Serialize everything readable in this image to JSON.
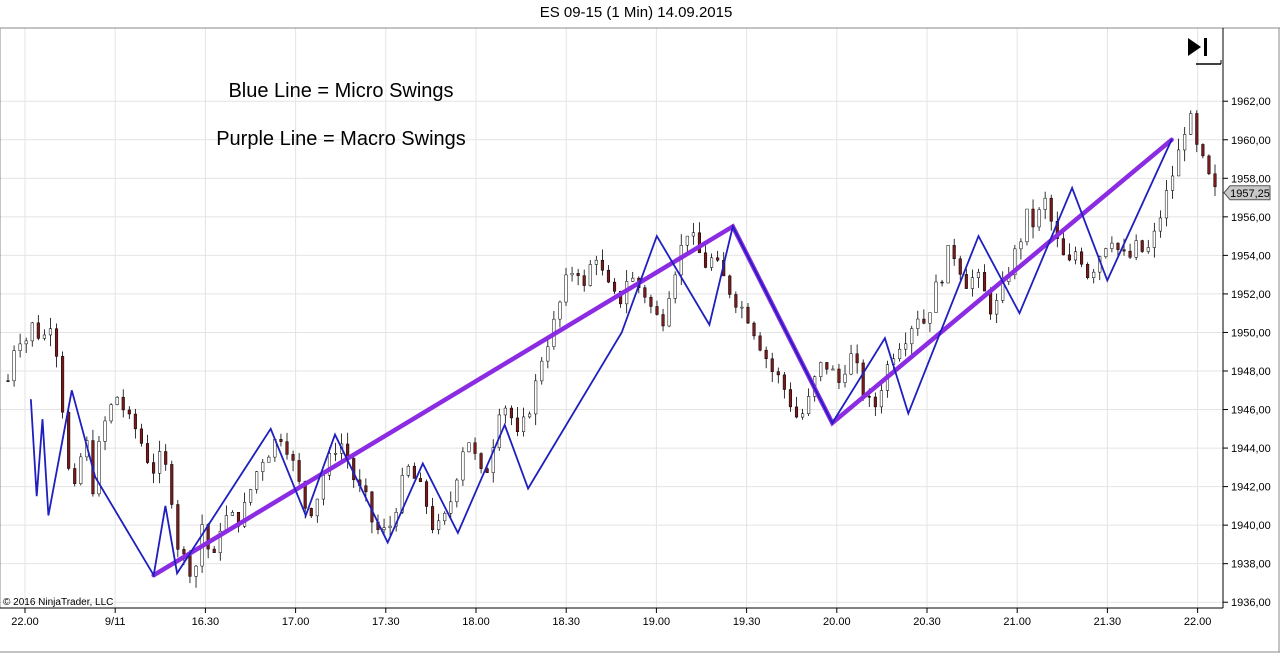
{
  "chart_data": {
    "type": "candlestick",
    "title": "ES 09-15 (1 Min)  14.09.2015",
    "xlabel": "",
    "ylabel": "",
    "x_tick_labels": [
      "22.00",
      "9/11",
      "16.30",
      "17.00",
      "17.30",
      "18.00",
      "18.30",
      "19.00",
      "19.30",
      "20.00",
      "20.30",
      "21.00",
      "21.30",
      "22.00"
    ],
    "y_ticks": [
      "1936,00",
      "1938,00",
      "1940,00",
      "1942,00",
      "1944,00",
      "1946,00",
      "1948,00",
      "1950,00",
      "1952,00",
      "1954,00",
      "1956,00",
      "1958,00",
      "1960,00",
      "1962,00"
    ],
    "ylim": [
      1935.7,
      1965.8
    ],
    "grid": true,
    "last_price_label": "1957,25",
    "last_price": 1957.25,
    "candle_colors": {
      "up": "#ffffff",
      "down": "#7a1a1a",
      "wick": "#000000"
    },
    "price_path": [
      [
        0,
        1947.5
      ],
      [
        1,
        1950
      ],
      [
        2,
        1949.5
      ],
      [
        3,
        1950.5
      ],
      [
        4,
        1949.5
      ],
      [
        5,
        1950.6
      ],
      [
        6,
        1948.5
      ],
      [
        7,
        1943
      ],
      [
        8,
        1941.5
      ],
      [
        9,
        1945
      ],
      [
        10,
        1942
      ],
      [
        11,
        1944.8
      ],
      [
        12,
        1946
      ],
      [
        13,
        1946.8
      ],
      [
        14,
        1945.5
      ],
      [
        15,
        1945
      ],
      [
        16,
        1944
      ],
      [
        17,
        1942.8
      ],
      [
        18,
        1943.5
      ],
      [
        19,
        1942.5
      ],
      [
        20,
        1939
      ],
      [
        21,
        1938
      ],
      [
        22,
        1937.5
      ],
      [
        23,
        1940.5
      ],
      [
        24,
        1937.5
      ],
      [
        25,
        1940
      ],
      [
        26,
        1940.5
      ],
      [
        27,
        1940.2
      ],
      [
        28,
        1941
      ],
      [
        29,
        1942.5
      ],
      [
        30,
        1943.5
      ],
      [
        31,
        1944
      ],
      [
        32,
        1944.8
      ],
      [
        33,
        1944
      ],
      [
        34,
        1942.5
      ],
      [
        35,
        1941
      ],
      [
        36,
        1940.8
      ],
      [
        37,
        1942.5
      ],
      [
        38,
        1943.5
      ],
      [
        39,
        1944.5
      ],
      [
        40,
        1943.5
      ],
      [
        41,
        1942
      ],
      [
        42,
        1941.5
      ],
      [
        43,
        1940
      ],
      [
        44,
        1939.5
      ],
      [
        45,
        1940
      ],
      [
        46,
        1941.5
      ],
      [
        47,
        1943
      ],
      [
        48,
        1942.3
      ],
      [
        49,
        1941.5
      ],
      [
        50,
        1940
      ],
      [
        51,
        1939.8
      ],
      [
        52,
        1941
      ],
      [
        53,
        1943
      ],
      [
        54,
        1944.8
      ],
      [
        55,
        1943.5
      ],
      [
        56,
        1942.2
      ],
      [
        57,
        1944
      ],
      [
        58,
        1946.5
      ],
      [
        59,
        1946
      ],
      [
        60,
        1944.5
      ],
      [
        61,
        1945.5
      ],
      [
        62,
        1947
      ],
      [
        63,
        1949
      ],
      [
        64,
        1950
      ],
      [
        65,
        1951.5
      ],
      [
        66,
        1953
      ],
      [
        67,
        1953.5
      ],
      [
        68,
        1952
      ],
      [
        69,
        1954.5
      ],
      [
        70,
        1953
      ],
      [
        71,
        1952
      ],
      [
        72,
        1951.5
      ],
      [
        73,
        1953
      ],
      [
        74,
        1952.5
      ],
      [
        75,
        1952
      ],
      [
        76,
        1951
      ],
      [
        77,
        1950.5
      ],
      [
        78,
        1952.5
      ],
      [
        79,
        1954
      ],
      [
        80,
        1955.3
      ],
      [
        81,
        1954.5
      ],
      [
        82,
        1953.5
      ],
      [
        83,
        1953.8
      ],
      [
        84,
        1953
      ],
      [
        85,
        1952.2
      ],
      [
        86,
        1951.5
      ],
      [
        87,
        1951
      ],
      [
        88,
        1950
      ],
      [
        89,
        1949
      ],
      [
        90,
        1948
      ],
      [
        91,
        1947.5
      ],
      [
        92,
        1946.5
      ],
      [
        93,
        1945.5
      ],
      [
        94,
        1946
      ],
      [
        95,
        1947.5
      ],
      [
        96,
        1948.5
      ],
      [
        97,
        1948
      ],
      [
        98,
        1947.3
      ],
      [
        99,
        1949
      ],
      [
        100,
        1948
      ],
      [
        101,
        1946.5
      ],
      [
        102,
        1946
      ],
      [
        103,
        1947.5
      ],
      [
        104,
        1948.8
      ],
      [
        105,
        1949.5
      ],
      [
        106,
        1950
      ],
      [
        107,
        1951
      ],
      [
        108,
        1950.5
      ],
      [
        109,
        1952
      ],
      [
        110,
        1953
      ],
      [
        111,
        1954.5
      ],
      [
        112,
        1953.5
      ],
      [
        113,
        1952.5
      ],
      [
        114,
        1953
      ],
      [
        115,
        1952
      ],
      [
        116,
        1951
      ],
      [
        117,
        1952
      ],
      [
        118,
        1953.5
      ],
      [
        119,
        1954.5
      ],
      [
        120,
        1956
      ],
      [
        121,
        1955.5
      ],
      [
        122,
        1957
      ],
      [
        123,
        1955.5
      ],
      [
        124,
        1954
      ],
      [
        125,
        1953.5
      ],
      [
        126,
        1954.5
      ],
      [
        127,
        1953
      ],
      [
        128,
        1953.5
      ],
      [
        129,
        1954.5
      ],
      [
        130,
        1955
      ],
      [
        131,
        1954
      ],
      [
        132,
        1953.8
      ],
      [
        133,
        1954.5
      ],
      [
        134,
        1954
      ],
      [
        135,
        1955
      ],
      [
        136,
        1956.5
      ],
      [
        137,
        1958
      ],
      [
        138,
        1959.5
      ],
      [
        139,
        1961.5
      ],
      [
        140,
        1959.5
      ],
      [
        141,
        1958.5
      ],
      [
        142,
        1957.25
      ]
    ],
    "series": [
      {
        "name": "Blue Line = Micro Swings",
        "color": "#1f1fbf",
        "points": [
          [
            1,
            1946.5
          ],
          [
            2,
            1941.5
          ],
          [
            3,
            1945.5
          ],
          [
            4,
            1940.5
          ],
          [
            8,
            1947
          ],
          [
            12,
            1942.5
          ],
          [
            22,
            1937.4
          ],
          [
            24,
            1941
          ],
          [
            26,
            1937.5
          ],
          [
            42,
            1945
          ],
          [
            48,
            1940.5
          ],
          [
            53,
            1944.7
          ],
          [
            62,
            1939.1
          ],
          [
            68,
            1943.2
          ],
          [
            74,
            1939.6
          ],
          [
            82,
            1945.2
          ],
          [
            86,
            1941.9
          ],
          [
            102,
            1950
          ],
          [
            108,
            1955
          ],
          [
            117,
            1950.4
          ],
          [
            121,
            1955.5
          ],
          [
            138,
            1945.3
          ],
          [
            147,
            1949.7
          ],
          [
            151,
            1945.8
          ],
          [
            163,
            1955
          ],
          [
            170,
            1951
          ],
          [
            179,
            1957.5
          ],
          [
            185,
            1952.7
          ],
          [
            196,
            1960
          ]
        ]
      },
      {
        "name": "Purple Line = Macro Swings",
        "color": "#8b2be2",
        "points": [
          [
            22,
            1937.4
          ],
          [
            121,
            1955.5
          ],
          [
            138,
            1945.3
          ],
          [
            196,
            1960
          ]
        ]
      }
    ],
    "annotations": [
      "Blue Line = Micro Swings",
      "Purple Line = Macro Swings"
    ]
  },
  "copyright": "© 2016 NinjaTrader, LLC",
  "icons": {
    "jump_to_end": "skip-to-end-icon"
  }
}
